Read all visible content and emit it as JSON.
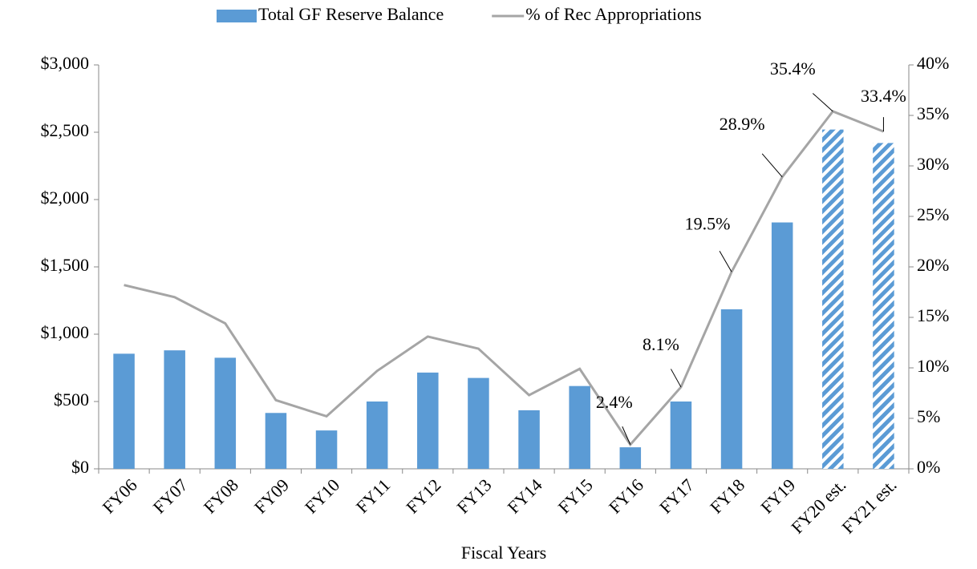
{
  "chart_data": {
    "type": "bar_line",
    "xlabel": "Fiscal Years",
    "categories": [
      "FY06",
      "FY07",
      "FY08",
      "FY09",
      "FY10",
      "FY11",
      "FY12",
      "FY13",
      "FY14",
      "FY15",
      "FY16",
      "FY17",
      "FY18",
      "FY19",
      "FY20 est.",
      "FY21 est."
    ],
    "series": [
      {
        "name": "Total GF Reserve Balance",
        "type": "bar",
        "color": "#5b9bd5",
        "hatched": [
          false,
          false,
          false,
          false,
          false,
          false,
          false,
          false,
          false,
          false,
          false,
          false,
          false,
          false,
          true,
          true
        ],
        "values": [
          855,
          880,
          825,
          415,
          285,
          500,
          715,
          675,
          435,
          615,
          160,
          500,
          1185,
          1830,
          2520,
          2420
        ]
      },
      {
        "name": "% of Rec Appropriations",
        "type": "line",
        "axis": "y2",
        "color": "#a5a5a5",
        "values": [
          18.2,
          17.0,
          14.4,
          6.8,
          5.2,
          9.7,
          13.1,
          11.9,
          7.3,
          9.9,
          2.4,
          8.1,
          19.5,
          28.9,
          35.4,
          33.4
        ],
        "value_labels": [
          null,
          null,
          null,
          null,
          null,
          null,
          null,
          null,
          null,
          null,
          "2.4%",
          "8.1%",
          "19.5%",
          "28.9%",
          "35.4%",
          "33.4%"
        ]
      }
    ],
    "ylim": [
      0,
      3000
    ],
    "yticks": [
      {
        "value": 0,
        "label": "$0"
      },
      {
        "value": 500,
        "label": "$500"
      },
      {
        "value": 1000,
        "label": "$1,000"
      },
      {
        "value": 1500,
        "label": "$1,500"
      },
      {
        "value": 2000,
        "label": "$2,000"
      },
      {
        "value": 2500,
        "label": "$2,500"
      },
      {
        "value": 3000,
        "label": "$3,000"
      }
    ],
    "y2lim": [
      0,
      40
    ],
    "y2ticks": [
      {
        "value": 0,
        "label": "0%"
      },
      {
        "value": 5,
        "label": "5%"
      },
      {
        "value": 10,
        "label": "10%"
      },
      {
        "value": 15,
        "label": "15%"
      },
      {
        "value": 20,
        "label": "20%"
      },
      {
        "value": 25,
        "label": "25%"
      },
      {
        "value": 30,
        "label": "30%"
      },
      {
        "value": 35,
        "label": "35%"
      },
      {
        "value": 40,
        "label": "40%"
      }
    ],
    "grid": false,
    "legend": "top"
  }
}
